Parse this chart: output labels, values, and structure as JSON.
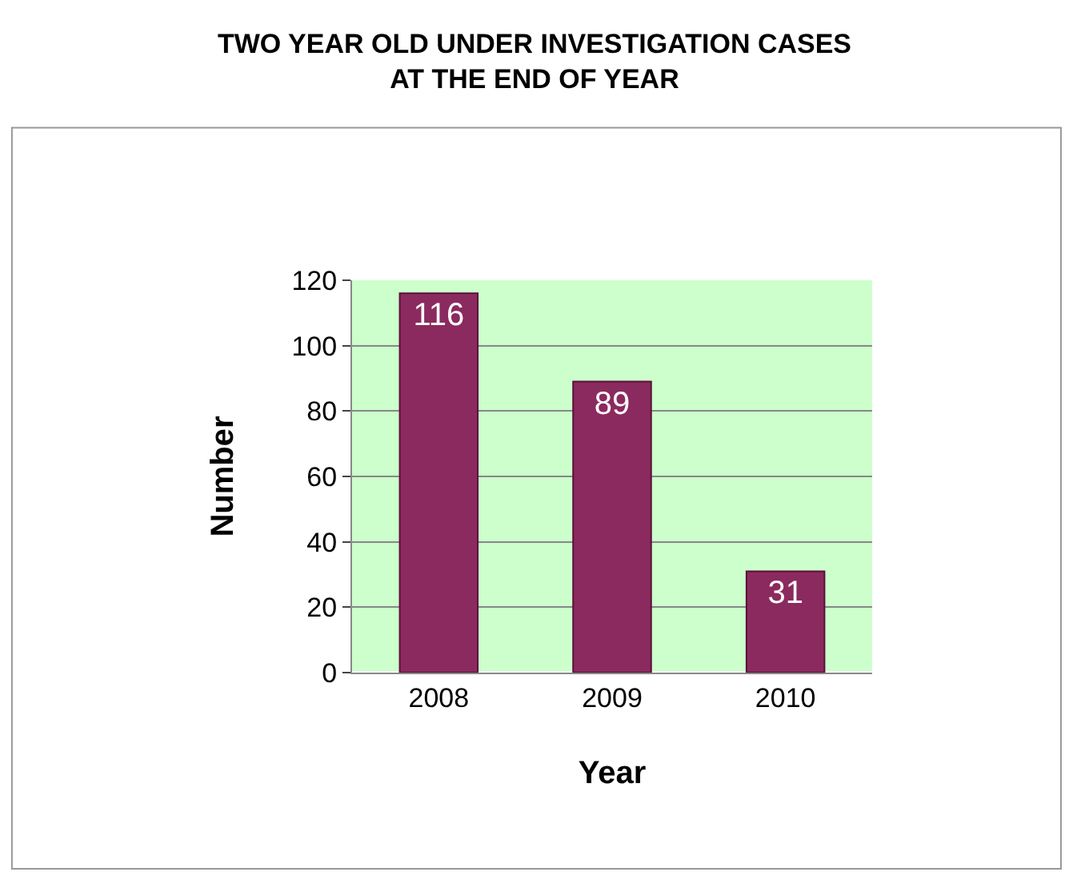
{
  "chart_data": {
    "type": "bar",
    "title": "TWO YEAR OLD UNDER INVESTIGATION CASES\nAT THE END OF YEAR",
    "xlabel": "Year",
    "ylabel": "Number",
    "categories": [
      "2008",
      "2009",
      "2010"
    ],
    "values": [
      116,
      89,
      31
    ],
    "color": "#8b2a5e",
    "ylim": [
      0,
      120
    ],
    "yticks": [
      0,
      20,
      40,
      60,
      80,
      100,
      120
    ],
    "grid": "y",
    "data_labels": true
  }
}
